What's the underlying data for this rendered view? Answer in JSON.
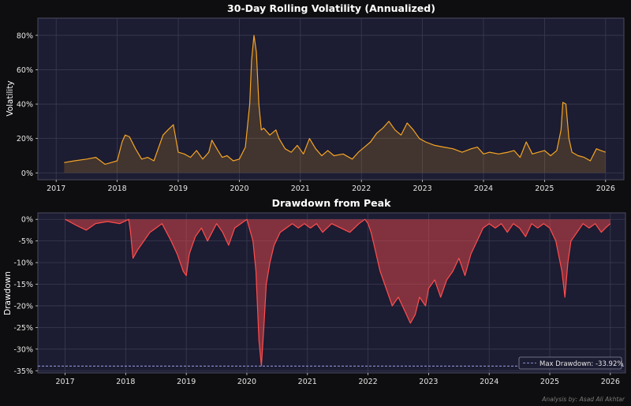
{
  "credit": "Analysis by: Asad Ali Akhtar",
  "colors": {
    "background": "#0e0e10",
    "panel": "#1c1c32",
    "volatility": "#f5a623",
    "drawdown": "#ff4d4d",
    "grid": "#3a3a52"
  },
  "chart_data": [
    {
      "type": "area",
      "title": "30-Day Rolling Volatility (Annualized)",
      "xlabel": "",
      "ylabel": "Volatility",
      "xlim": [
        2016.7,
        2026.3
      ],
      "ylim": [
        -4,
        90
      ],
      "grid": true,
      "x_ticks": [
        2017,
        2018,
        2019,
        2020,
        2021,
        2022,
        2023,
        2024,
        2025,
        2026
      ],
      "y_ticks": [
        0,
        20,
        40,
        60,
        80
      ],
      "y_tick_labels": [
        "0%",
        "20%",
        "40%",
        "60%",
        "80%"
      ],
      "series": [
        {
          "color": "#f5a623",
          "x": [
            2017.13,
            2017.3,
            2017.5,
            2017.65,
            2017.8,
            2017.9,
            2018.0,
            2018.08,
            2018.13,
            2018.2,
            2018.3,
            2018.4,
            2018.5,
            2018.6,
            2018.75,
            2018.83,
            2018.92,
            2019.0,
            2019.1,
            2019.2,
            2019.3,
            2019.4,
            2019.5,
            2019.55,
            2019.65,
            2019.72,
            2019.8,
            2019.9,
            2020.0,
            2020.1,
            2020.17,
            2020.2,
            2020.24,
            2020.28,
            2020.32,
            2020.36,
            2020.4,
            2020.5,
            2020.6,
            2020.65,
            2020.75,
            2020.85,
            2020.95,
            2021.05,
            2021.15,
            2021.25,
            2021.35,
            2021.45,
            2021.55,
            2021.7,
            2021.85,
            2021.95,
            2022.05,
            2022.15,
            2022.25,
            2022.35,
            2022.45,
            2022.55,
            2022.65,
            2022.75,
            2022.85,
            2022.95,
            2023.05,
            2023.2,
            2023.35,
            2023.5,
            2023.65,
            2023.8,
            2023.9,
            2024.0,
            2024.1,
            2024.25,
            2024.4,
            2024.5,
            2024.6,
            2024.7,
            2024.8,
            2024.9,
            2025.0,
            2025.1,
            2025.2,
            2025.27,
            2025.3,
            2025.35,
            2025.4,
            2025.45,
            2025.55,
            2025.65,
            2025.75,
            2025.85,
            2025.92,
            2026.0
          ],
          "values": [
            6,
            7,
            8,
            9,
            5,
            6,
            7,
            18,
            22,
            21,
            14,
            8,
            9,
            7,
            22,
            25,
            28,
            12,
            11,
            9,
            13,
            8,
            12,
            19,
            13,
            9,
            10,
            7,
            8,
            15,
            40,
            65,
            80,
            70,
            40,
            25,
            26,
            22,
            25,
            20,
            14,
            12,
            16,
            11,
            20,
            14,
            10,
            13,
            10,
            11,
            8,
            12,
            15,
            18,
            23,
            26,
            30,
            25,
            22,
            29,
            25,
            20,
            18,
            16,
            15,
            14,
            12,
            14,
            15,
            11,
            12,
            11,
            12,
            13,
            9,
            18,
            11,
            12,
            13,
            10,
            13,
            25,
            41,
            40,
            20,
            12,
            10,
            9,
            7,
            14,
            13,
            12
          ]
        }
      ]
    },
    {
      "type": "area",
      "title": "Drawdown from Peak",
      "xlabel": "",
      "ylabel": "Drawdown",
      "xlim": [
        2016.55,
        2026.25
      ],
      "ylim": [
        -35.5,
        1.5
      ],
      "grid": true,
      "x_ticks": [
        2017,
        2018,
        2019,
        2020,
        2021,
        2022,
        2023,
        2024,
        2025,
        2026
      ],
      "y_ticks": [
        0,
        -5,
        -10,
        -15,
        -20,
        -25,
        -30,
        -35
      ],
      "y_tick_labels": [
        "0%",
        "-5%",
        "-10%",
        "-15%",
        "-20%",
        "-25%",
        "-30%",
        "-35%"
      ],
      "legend": "bottom-right",
      "reference_line": {
        "label": "Max Drawdown: -33.92%",
        "value": -33.92
      },
      "series": [
        {
          "color": "#ff4d4d",
          "x": [
            2017.0,
            2017.2,
            2017.35,
            2017.5,
            2017.7,
            2017.9,
            2018.05,
            2018.08,
            2018.12,
            2018.2,
            2018.3,
            2018.4,
            2018.5,
            2018.6,
            2018.75,
            2018.85,
            2018.95,
            2019.0,
            2019.05,
            2019.15,
            2019.25,
            2019.35,
            2019.5,
            2019.6,
            2019.7,
            2019.8,
            2019.9,
            2020.0,
            2020.1,
            2020.15,
            2020.2,
            2020.24,
            2020.28,
            2020.32,
            2020.38,
            2020.45,
            2020.55,
            2020.65,
            2020.75,
            2020.85,
            2020.95,
            2021.05,
            2021.15,
            2021.25,
            2021.4,
            2021.55,
            2021.7,
            2021.85,
            2021.95,
            2022.0,
            2022.05,
            2022.1,
            2022.2,
            2022.3,
            2022.4,
            2022.5,
            2022.6,
            2022.7,
            2022.78,
            2022.85,
            2022.95,
            2023.0,
            2023.1,
            2023.2,
            2023.3,
            2023.4,
            2023.5,
            2023.6,
            2023.7,
            2023.8,
            2023.9,
            2024.0,
            2024.1,
            2024.2,
            2024.3,
            2024.4,
            2024.5,
            2024.6,
            2024.7,
            2024.8,
            2024.9,
            2025.0,
            2025.1,
            2025.2,
            2025.25,
            2025.3,
            2025.35,
            2025.45,
            2025.55,
            2025.65,
            2025.75,
            2025.85,
            2025.92,
            2026.0
          ],
          "values": [
            0,
            -1.5,
            -2.5,
            -1,
            -0.5,
            -1,
            0,
            -3,
            -9,
            -7,
            -5,
            -3,
            -2,
            -1,
            -5,
            -8,
            -12,
            -13,
            -8,
            -4,
            -2,
            -5,
            -1,
            -3,
            -6,
            -2,
            -1,
            0,
            -5,
            -12,
            -28,
            -33.9,
            -25,
            -15,
            -10,
            -6,
            -3,
            -2,
            -1,
            -2,
            -1,
            -2,
            -1,
            -3,
            -1,
            -2,
            -3,
            -1,
            0,
            -1,
            -3,
            -6,
            -12,
            -16,
            -20,
            -18,
            -21,
            -24,
            -22,
            -18,
            -20,
            -16,
            -14,
            -18,
            -14,
            -12,
            -9,
            -13,
            -8,
            -5,
            -2,
            -1,
            -2,
            -1,
            -3,
            -1,
            -2,
            -4,
            -1,
            -2,
            -1,
            -2,
            -5,
            -12,
            -18,
            -10,
            -5,
            -3,
            -1,
            -2,
            -1,
            -3,
            -2,
            -1
          ]
        }
      ]
    }
  ]
}
